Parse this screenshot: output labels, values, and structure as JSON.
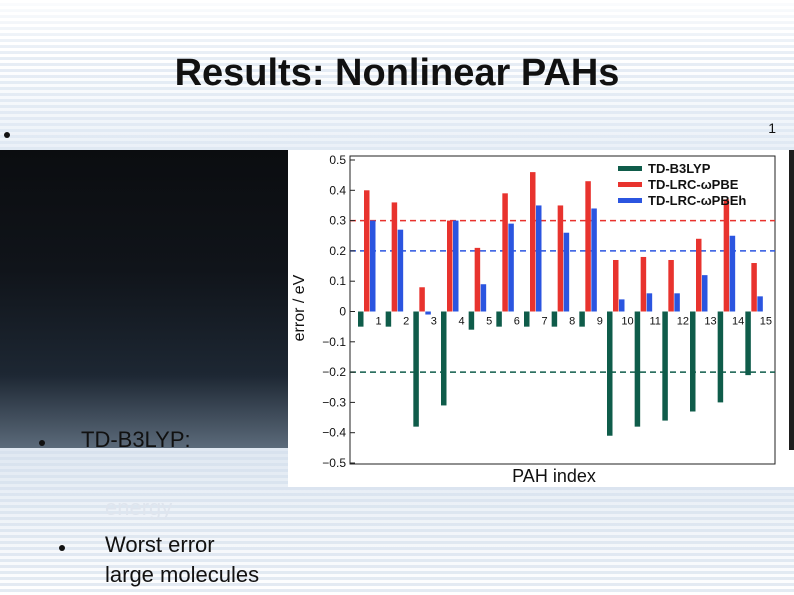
{
  "slide": {
    "title": "Results: Nonlinear PAHs",
    "slide_number": "1",
    "bullets": [
      {
        "text": "TD-B3LYP:"
      },
      {
        "text": "energy"
      },
      {
        "text": "Worst error"
      },
      {
        "text": "large molecules"
      }
    ]
  },
  "colors": {
    "b3lyp": "#0f5c4a",
    "lrc_wpbe": "#e8332e",
    "lrc_wpbeh": "#2b55e0"
  },
  "chart_data": {
    "type": "bar",
    "xlabel": "PAH index",
    "ylabel": "error / eV",
    "ylim": [
      -0.5,
      0.5
    ],
    "yticks": [
      "0.5",
      "0.4",
      "0.3",
      "0.2",
      "0.1",
      "0",
      "−0.1",
      "−0.2",
      "−0.3",
      "−0.4",
      "−0.5"
    ],
    "categories": [
      "1",
      "2",
      "3",
      "4",
      "5",
      "6",
      "7",
      "8",
      "9",
      "10",
      "11",
      "12",
      "13",
      "14",
      "15"
    ],
    "series": [
      {
        "name": "TD-B3LYP",
        "values": [
          -0.05,
          -0.05,
          -0.38,
          -0.31,
          -0.06,
          -0.05,
          -0.05,
          -0.05,
          -0.05,
          -0.41,
          -0.38,
          -0.36,
          -0.33,
          -0.3,
          -0.21
        ]
      },
      {
        "name": "TD-LRC-ωPBE",
        "values": [
          0.4,
          0.36,
          0.08,
          0.3,
          0.21,
          0.39,
          0.46,
          0.35,
          0.43,
          0.17,
          0.18,
          0.17,
          0.24,
          0.37,
          0.16
        ]
      },
      {
        "name": "TD-LRC-ωPBEh",
        "values": [
          0.3,
          0.27,
          -0.01,
          0.3,
          0.09,
          0.29,
          0.35,
          0.26,
          0.34,
          0.04,
          0.06,
          0.06,
          0.12,
          0.25,
          0.05
        ]
      }
    ],
    "reference_lines": [
      {
        "value": 0.3,
        "color": "#e8332e"
      },
      {
        "value": 0.2,
        "color": "#2b55e0"
      },
      {
        "value": -0.2,
        "color": "#0f5c4a"
      }
    ],
    "legend_position": "top-right"
  }
}
